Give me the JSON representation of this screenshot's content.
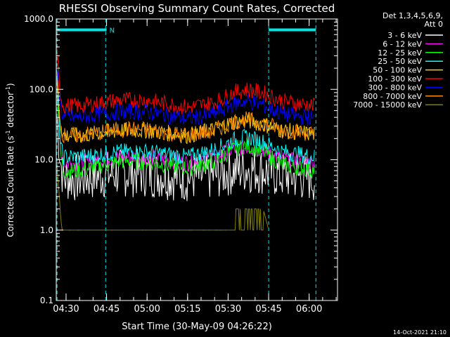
{
  "chart_data": {
    "type": "line",
    "title": "RHESSI Observing Summary Count Rates, Corrected",
    "xlabel": "Start Time (30-May-09 04:26:22)",
    "ylabel_parts": {
      "pre": "Corrected Count Rate (s",
      "sup1": "-1",
      "mid": " detector",
      "sup2": "-1",
      "post": ")"
    },
    "yscale": "log",
    "ylim": [
      0.1,
      1000
    ],
    "xlim": [
      "04:26:22",
      "06:10:30"
    ],
    "x_ticks": [
      "04:30",
      "04:45",
      "05:00",
      "05:15",
      "05:30",
      "05:45",
      "06:00"
    ],
    "y_ticks": [
      "0.1",
      "1.0",
      "10.0",
      "100.0",
      "1000.0"
    ],
    "legend_header": [
      "Det 1,3,4,5,6,9,",
      "Att 0"
    ],
    "legend_position": "right",
    "footer": "14-Oct-2021 21:10",
    "markers": {
      "vlines": [
        "04:26:40",
        "04:44:40",
        "05:45:00",
        "06:02:30"
      ],
      "bars": [
        {
          "start": "04:26:22",
          "end": "04:45:00",
          "value": 700
        },
        {
          "start": "05:45:00",
          "end": "06:02:30",
          "value": 700
        }
      ],
      "bar_label": "N",
      "color": "#00e5e5"
    },
    "series": [
      {
        "name": "3 - 6 keV",
        "color": "#ffffff",
        "x": [
          "04:26:40",
          "04:28:00",
          "04:29:00",
          "04:35:00",
          "04:50:00",
          "05:00:00",
          "05:15:00",
          "05:25:00",
          "05:32:00",
          "05:37:00",
          "05:43:00",
          "05:50:00",
          "06:02:00"
        ],
        "y": [
          40,
          9,
          5.5,
          5.5,
          6.5,
          6.5,
          5.5,
          6,
          7,
          7.5,
          7,
          6,
          5.5
        ]
      },
      {
        "name": "6 - 12 keV",
        "color": "#ff00ff",
        "x": [
          "04:26:40",
          "04:28:00",
          "04:29:00",
          "04:35:00",
          "04:50:00",
          "05:00:00",
          "05:15:00",
          "05:25:00",
          "05:32:00",
          "05:37:00",
          "05:43:00",
          "05:50:00",
          "06:02:00"
        ],
        "y": [
          80,
          14,
          9,
          9,
          11,
          11,
          9,
          11,
          14,
          15,
          14,
          10,
          9
        ]
      },
      {
        "name": "12 - 25 keV",
        "color": "#00ff00",
        "x": [
          "04:26:40",
          "04:28:00",
          "04:29:00",
          "04:35:00",
          "04:50:00",
          "05:00:00",
          "05:15:00",
          "05:25:00",
          "05:32:00",
          "05:37:00",
          "05:43:00",
          "05:50:00",
          "06:02:00"
        ],
        "y": [
          100,
          12,
          7,
          7,
          9.5,
          9.5,
          7.5,
          9.5,
          14,
          16,
          13,
          8.5,
          7
        ]
      },
      {
        "name": "25 - 50 keV",
        "color": "#00ffff",
        "x": [
          "04:26:40",
          "04:28:00",
          "04:29:00",
          "04:35:00",
          "04:50:00",
          "05:00:00",
          "05:15:00",
          "05:25:00",
          "05:32:00",
          "05:37:00",
          "05:43:00",
          "05:50:00",
          "06:02:00"
        ],
        "y": [
          120,
          15,
          11,
          11,
          13,
          13,
          11,
          14,
          19,
          21,
          18,
          13,
          11
        ]
      },
      {
        "name": "50 - 100 keV",
        "color": "#ffcc00",
        "x": [
          "04:26:40",
          "04:28:00",
          "04:29:00",
          "04:35:00",
          "04:50:00",
          "05:00:00",
          "05:15:00",
          "05:25:00",
          "05:32:00",
          "05:37:00",
          "05:43:00",
          "05:50:00",
          "06:02:00"
        ],
        "y": [
          140,
          30,
          22,
          22,
          26,
          26,
          22,
          27,
          34,
          36,
          32,
          26,
          23
        ]
      },
      {
        "name": "100 - 300 keV",
        "color": "#ff0000",
        "x": [
          "04:26:40",
          "04:28:00",
          "04:29:00",
          "04:35:00",
          "04:50:00",
          "05:00:00",
          "05:15:00",
          "05:25:00",
          "05:32:00",
          "05:37:00",
          "05:43:00",
          "05:50:00",
          "06:02:00"
        ],
        "y": [
          300,
          80,
          58,
          58,
          70,
          70,
          55,
          65,
          90,
          100,
          88,
          68,
          58
        ]
      },
      {
        "name": "300 - 800 keV",
        "color": "#0000ff",
        "x": [
          "04:26:40",
          "04:28:00",
          "04:29:00",
          "04:35:00",
          "04:50:00",
          "05:00:00",
          "05:15:00",
          "05:25:00",
          "05:32:00",
          "05:37:00",
          "05:43:00",
          "05:50:00",
          "06:02:00"
        ],
        "y": [
          200,
          55,
          40,
          40,
          48,
          48,
          38,
          45,
          62,
          68,
          60,
          45,
          38
        ]
      },
      {
        "name": "800 - 7000 keV",
        "color": "#ff8c00",
        "x": [
          "04:26:40",
          "04:28:00",
          "04:29:00",
          "04:35:00",
          "04:50:00",
          "05:00:00",
          "05:15:00",
          "05:25:00",
          "05:32:00",
          "05:37:00",
          "05:43:00",
          "05:50:00",
          "06:02:00"
        ],
        "y": [
          150,
          30,
          22,
          22,
          27,
          27,
          22,
          26,
          35,
          37,
          33,
          27,
          23
        ]
      },
      {
        "name": "7000 - 15000 keV",
        "color": "#808000",
        "x": [
          "04:26:40",
          "04:27:30",
          "04:28:00",
          "04:28:30",
          "04:29:00",
          "04:30:00",
          "04:44:00",
          "04:46:00",
          "05:29:00",
          "05:31:00",
          "05:33:00",
          "05:43:00",
          "05:45:00"
        ],
        "y": [
          8,
          3,
          1.5,
          1.0,
          1.0,
          1.0,
          1.0,
          0.5,
          1.0,
          1.3,
          2.0,
          2.0,
          1.0
        ]
      }
    ]
  }
}
